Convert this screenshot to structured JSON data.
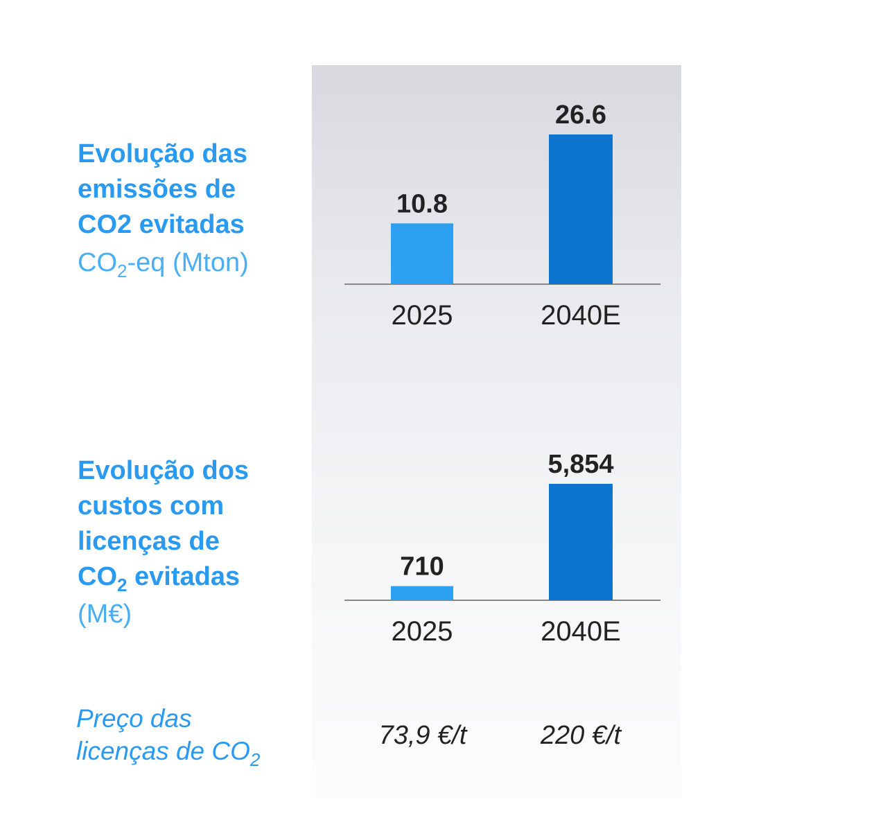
{
  "colors": {
    "title": "#2a9af0",
    "bar_2025": "#2ea0f2",
    "bar_2040": "#0d74d0",
    "text_dark": "#222222",
    "axis": "#888888"
  },
  "chart_data": [
    {
      "type": "bar",
      "title_lines": [
        "Evolução das",
        "emissões de",
        "CO2 evitadas"
      ],
      "unit": {
        "prefix": "CO",
        "sub": "2",
        "suffix": "-eq (Mton)"
      },
      "categories": [
        "2025",
        "2040E"
      ],
      "values": [
        10.8,
        26.6
      ],
      "value_labels": [
        "10.8",
        "26.6"
      ],
      "ylim": [
        0,
        26.6
      ],
      "grid": false
    },
    {
      "type": "bar",
      "title_lines": [
        "Evolução dos",
        "custos com",
        "licenças de"
      ],
      "title_last": {
        "prefix": "CO",
        "sub": "2",
        "suffix": " evitadas"
      },
      "unit_text": "(M€)",
      "categories": [
        "2025",
        "2040E"
      ],
      "values": [
        710,
        5854
      ],
      "value_labels": [
        "710",
        "5,854"
      ],
      "ylim": [
        0,
        5854
      ],
      "grid": false
    }
  ],
  "price_row": {
    "label_line1": "Preço das",
    "label_line2_prefix": "licenças de CO",
    "label_line2_sub": "2",
    "values": [
      "73,9 €/t",
      "220 €/t"
    ]
  }
}
